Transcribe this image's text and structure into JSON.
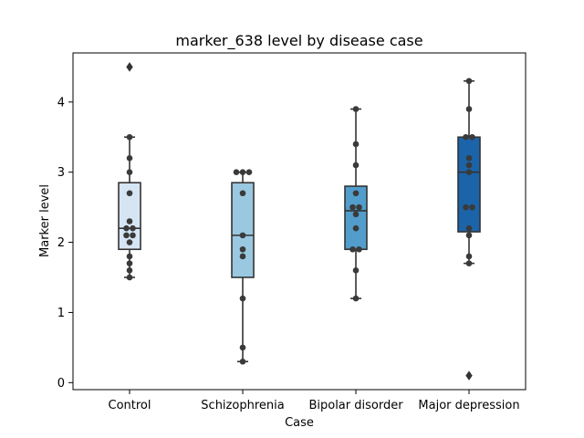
{
  "chart_data": {
    "type": "box",
    "title": "marker_638 level by disease case",
    "xlabel": "Case",
    "ylabel": "Marker level",
    "ylim": [
      -0.1,
      4.7
    ],
    "yticks": [
      0,
      1,
      2,
      3,
      4
    ],
    "grid": false,
    "categories": [
      "Control",
      "Schizophrenia",
      "Bipolar disorder",
      "Major depression"
    ],
    "box_colors": [
      "#d6e5f4",
      "#9ac8e0",
      "#529dcc",
      "#1b64a9"
    ],
    "edge_color": "#333333",
    "point_color": "#3a3a3a",
    "boxes": [
      {
        "min": 1.5,
        "q1": 1.9,
        "median": 2.2,
        "q3": 2.85,
        "max": 3.5,
        "outliers": [
          4.5
        ]
      },
      {
        "min": 0.3,
        "q1": 1.5,
        "median": 2.1,
        "q3": 2.85,
        "max": 3.0,
        "outliers": []
      },
      {
        "min": 1.2,
        "q1": 1.9,
        "median": 2.45,
        "q3": 2.8,
        "max": 3.9,
        "outliers": []
      },
      {
        "min": 1.7,
        "q1": 2.15,
        "median": 3.0,
        "q3": 3.5,
        "max": 4.3,
        "outliers": [
          0.1
        ]
      }
    ],
    "points": [
      [
        1.5,
        1.6,
        1.7,
        1.8,
        2.0,
        2.1,
        2.1,
        2.2,
        2.2,
        2.3,
        2.7,
        3.0,
        3.2,
        3.5
      ],
      [
        0.3,
        0.5,
        1.2,
        1.8,
        1.9,
        2.1,
        2.7,
        3.0,
        3.0,
        3.0
      ],
      [
        1.2,
        1.6,
        1.9,
        1.9,
        2.2,
        2.4,
        2.5,
        2.5,
        2.7,
        3.1,
        3.4,
        3.9
      ],
      [
        1.7,
        1.8,
        2.1,
        2.2,
        2.5,
        2.5,
        3.0,
        3.1,
        3.2,
        3.5,
        3.5,
        3.9,
        4.3
      ]
    ]
  }
}
